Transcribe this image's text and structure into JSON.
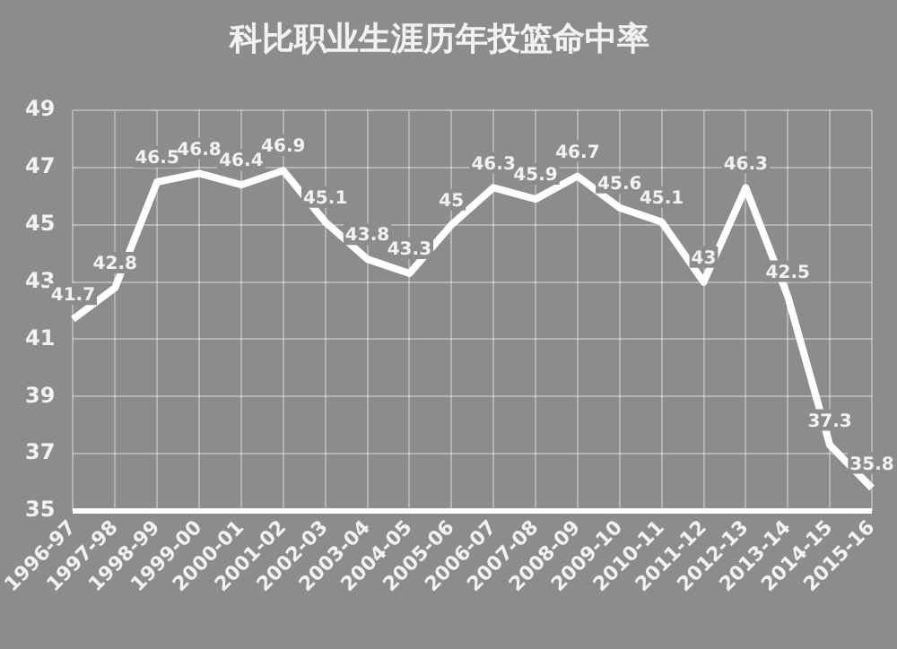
{
  "chart_data": {
    "type": "line",
    "title": "科比职业生涯历年投篮命中率",
    "categories": [
      "1996-97",
      "1997-98",
      "1998-99",
      "1999-00",
      "2000-01",
      "2001-02",
      "2002-03",
      "2003-04",
      "2004-05",
      "2005-06",
      "2006-07",
      "2007-08",
      "2008-09",
      "2009-10",
      "2010-11",
      "2011-12",
      "2012-13",
      "2013-14",
      "2014-15",
      "2015-16"
    ],
    "series": [
      {
        "color": "#ffffff",
        "values": [
          41.7,
          42.8,
          46.5,
          46.8,
          46.4,
          46.9,
          45.1,
          43.8,
          43.3,
          45,
          46.3,
          45.9,
          46.7,
          45.6,
          45.1,
          43,
          46.3,
          42.5,
          37.3,
          35.8
        ]
      }
    ],
    "ylim": [
      35,
      49
    ],
    "yticks": [
      35,
      37,
      39,
      41,
      43,
      45,
      47,
      49
    ],
    "grid": true,
    "legend": false,
    "marker": "none",
    "line_style": "solid",
    "data_labels": true
  }
}
